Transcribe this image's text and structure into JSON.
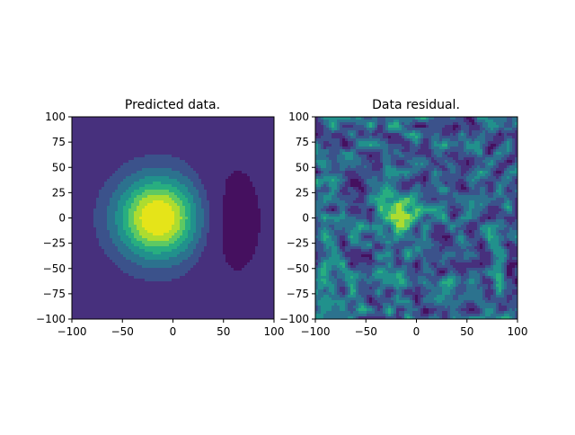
{
  "chart_data": [
    {
      "type": "heatmap",
      "subtype": "filled-contour",
      "title": "Predicted data.",
      "xlabel": "",
      "ylabel": "",
      "xlim": [
        -100,
        100
      ],
      "ylim": [
        -100,
        100
      ],
      "xticks": [
        "−100",
        "−50",
        "0",
        "50",
        "100"
      ],
      "xtick_values": [
        -100,
        -50,
        0,
        50,
        100
      ],
      "yticks": [
        "100",
        "75",
        "50",
        "25",
        "0",
        "−25",
        "−50",
        "−75",
        "−100"
      ],
      "ytick_values": [
        100,
        75,
        50,
        25,
        0,
        -25,
        -50,
        -75,
        -100
      ],
      "colormap": "viridis",
      "features": [
        {
          "kind": "positive-peak",
          "center": [
            -15,
            0
          ],
          "width": 28,
          "amplitude": 1.0
        },
        {
          "kind": "negative-lobe",
          "center": [
            62,
            -2
          ],
          "width": [
            22,
            46
          ],
          "amplitude": -0.22
        }
      ]
    },
    {
      "type": "heatmap",
      "subtype": "filled-contour",
      "title": "Data residual.",
      "xlabel": "",
      "ylabel": "",
      "xlim": [
        -100,
        100
      ],
      "ylim": [
        -100,
        100
      ],
      "xticks": [
        "−100",
        "−50",
        "0",
        "50",
        "100"
      ],
      "xtick_values": [
        -100,
        -50,
        0,
        50,
        100
      ],
      "yticks": [
        "100",
        "75",
        "50",
        "25",
        "0",
        "−25",
        "−50",
        "−75",
        "−100"
      ],
      "ytick_values": [
        100,
        75,
        50,
        25,
        0,
        -25,
        -50,
        -75,
        -100
      ],
      "colormap": "viridis",
      "features": [
        {
          "kind": "noise",
          "grid": 22,
          "seed": 7
        },
        {
          "kind": "positive-peak",
          "center": [
            -15,
            5
          ],
          "width": 14,
          "amplitude": 0.5
        }
      ]
    }
  ],
  "colors": {
    "levels": [
      "#45105f",
      "#47307d",
      "#3b528b",
      "#2c728e",
      "#21918c",
      "#28ae80",
      "#5ec962",
      "#addc30",
      "#e5e419"
    ]
  }
}
